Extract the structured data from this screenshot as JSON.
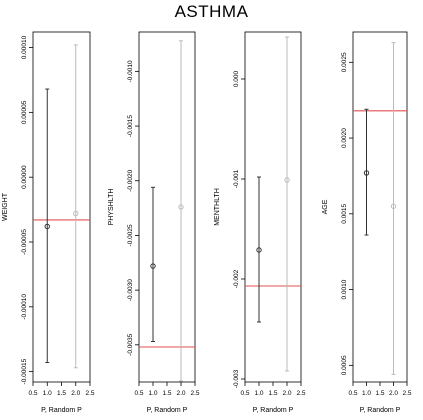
{
  "title": "ASTHMA",
  "colors": {
    "point_dark": "#333333",
    "point_light": "#bbbbbb",
    "reference_line": "#e05050",
    "frame": "#000000"
  },
  "chart_data": [
    {
      "type": "scatter",
      "ylabel": "WEIGHT",
      "xlabel": "P, Random P",
      "xlim": [
        0.5,
        2.5
      ],
      "xticks": [
        0.5,
        1.0,
        1.5,
        2.0,
        2.5
      ],
      "xtick_labels": [
        "0.5",
        "1.0",
        "1.5",
        "2.0",
        "2.5"
      ],
      "ylim": [
        -0.000158,
        0.000112
      ],
      "yticks": [
        -0.00015,
        -0.0001,
        -5e-05,
        0.0,
        5e-05,
        0.0001
      ],
      "ytick_labels": [
        "-0.00015",
        "-0.00010",
        "-0.00005",
        "0.00000",
        "0.00005",
        "0.00010"
      ],
      "reference_line": -3.3e-05,
      "points": [
        {
          "x": 1,
          "y": -3.8e-05,
          "lower": -0.000143,
          "upper": 6.8e-05,
          "shade": "dark"
        },
        {
          "x": 2,
          "y": -2.8e-05,
          "lower": -0.000147,
          "upper": 0.000102,
          "shade": "light"
        }
      ]
    },
    {
      "type": "scatter",
      "ylabel": "PHYSHLTH",
      "xlabel": "P, Random P",
      "xlim": [
        0.5,
        2.5
      ],
      "xticks": [
        0.5,
        1.0,
        1.5,
        2.0,
        2.5
      ],
      "xtick_labels": [
        "0.5",
        "1.0",
        "1.5",
        "2.0",
        "2.5"
      ],
      "ylim": [
        -0.00384,
        -0.00064
      ],
      "yticks": [
        -0.0035,
        -0.003,
        -0.0025,
        -0.002,
        -0.0015,
        -0.001
      ],
      "ytick_labels": [
        "-0.0035",
        "-0.0030",
        "-0.0025",
        "-0.0020",
        "-0.0015",
        "-0.0010"
      ],
      "reference_line": -0.00352,
      "points": [
        {
          "x": 1,
          "y": -0.00278,
          "lower": -0.00347,
          "upper": -0.00206,
          "shade": "dark"
        },
        {
          "x": 2,
          "y": -0.00224,
          "lower": -0.00383,
          "upper": -0.00072,
          "shade": "light"
        }
      ]
    },
    {
      "type": "scatter",
      "ylabel": "MENTHLTH",
      "xlabel": "P, Random P",
      "xlim": [
        0.5,
        2.5
      ],
      "xticks": [
        0.5,
        1.0,
        1.5,
        2.0,
        2.5
      ],
      "xtick_labels": [
        "0.5",
        "1.0",
        "1.5",
        "2.0",
        "2.5"
      ],
      "ylim": [
        -0.00303,
        0.00047
      ],
      "yticks": [
        -0.003,
        -0.002,
        -0.001,
        0.0
      ],
      "ytick_labels": [
        "-0.003",
        "-0.002",
        "-0.001",
        "0.000"
      ],
      "reference_line": -0.00207,
      "points": [
        {
          "x": 1,
          "y": -0.00171,
          "lower": -0.00243,
          "upper": -0.00098,
          "shade": "dark"
        },
        {
          "x": 2,
          "y": -0.00101,
          "lower": -0.00292,
          "upper": 0.00042,
          "shade": "light"
        }
      ]
    },
    {
      "type": "scatter",
      "ylabel": "AGE",
      "xlabel": "P, Random P",
      "xlim": [
        0.5,
        2.5
      ],
      "xticks": [
        0.5,
        1.0,
        1.5,
        2.0,
        2.5
      ],
      "xtick_labels": [
        "0.5",
        "1.0",
        "1.5",
        "2.0",
        "2.5"
      ],
      "ylim": [
        0.00039,
        0.0027
      ],
      "yticks": [
        0.0005,
        0.001,
        0.0015,
        0.002,
        0.0025
      ],
      "ytick_labels": [
        "0.0005",
        "0.0010",
        "0.0015",
        "0.0020",
        "0.0025"
      ],
      "reference_line": 0.00218,
      "points": [
        {
          "x": 1,
          "y": 0.00177,
          "lower": 0.00136,
          "upper": 0.00219,
          "shade": "dark"
        },
        {
          "x": 2,
          "y": 0.00155,
          "lower": 0.00044,
          "upper": 0.00263,
          "shade": "light"
        }
      ]
    }
  ]
}
